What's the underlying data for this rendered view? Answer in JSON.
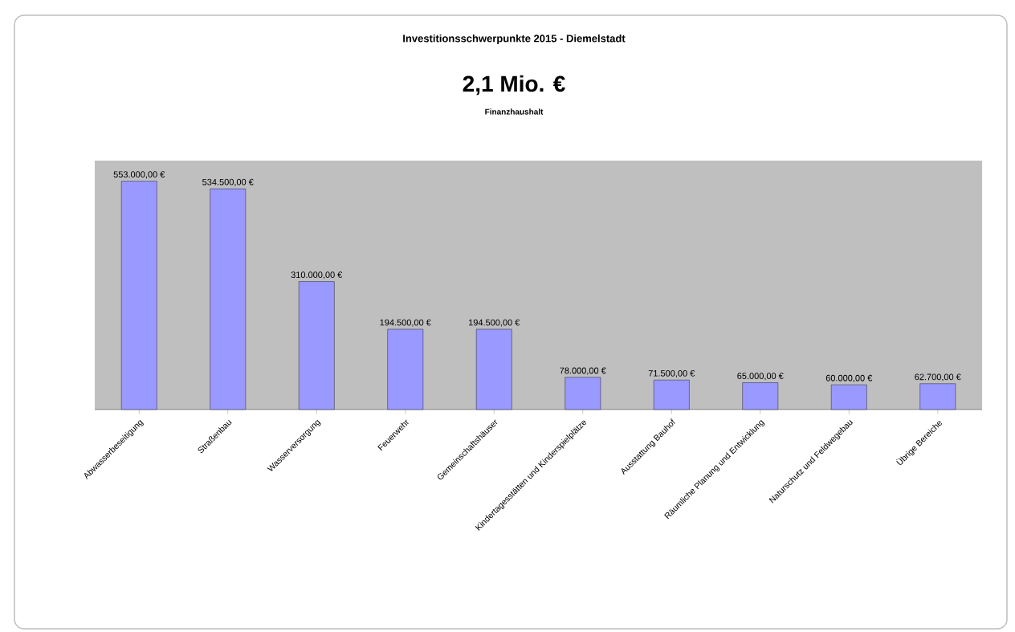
{
  "chart_data": {
    "type": "bar",
    "title": "Investitionsschwerpunkte 2015 - Diemelstadt",
    "subtitle": "2,1 Mio. €",
    "annotations": [
      "Finanzhaushalt"
    ],
    "categories": [
      "Abwasserbeseitigung",
      "Straßenbau",
      "Wasserversorgung",
      "Feuerwehr",
      "Gemeinschaftshäuser",
      "Kindertagesstätten und Kinderspielplätze",
      "Ausstattung Bauhof",
      "Räumliche Planung und Entwicklung",
      "Naturschutz und Feldwegebau",
      "Übrige Bereiche"
    ],
    "values": [
      553000,
      534500,
      310000,
      194500,
      194500,
      78000,
      71500,
      65000,
      60000,
      62700
    ],
    "value_labels": [
      "553.000,00 €",
      "534.500,00 €",
      "310.000,00 €",
      "194.500,00 €",
      "194.500,00 €",
      "78.000,00 €",
      "71.500,00 €",
      "65.000,00 €",
      "60.000,00 €",
      "62.700,00 €"
    ],
    "color": "#9999ff"
  }
}
